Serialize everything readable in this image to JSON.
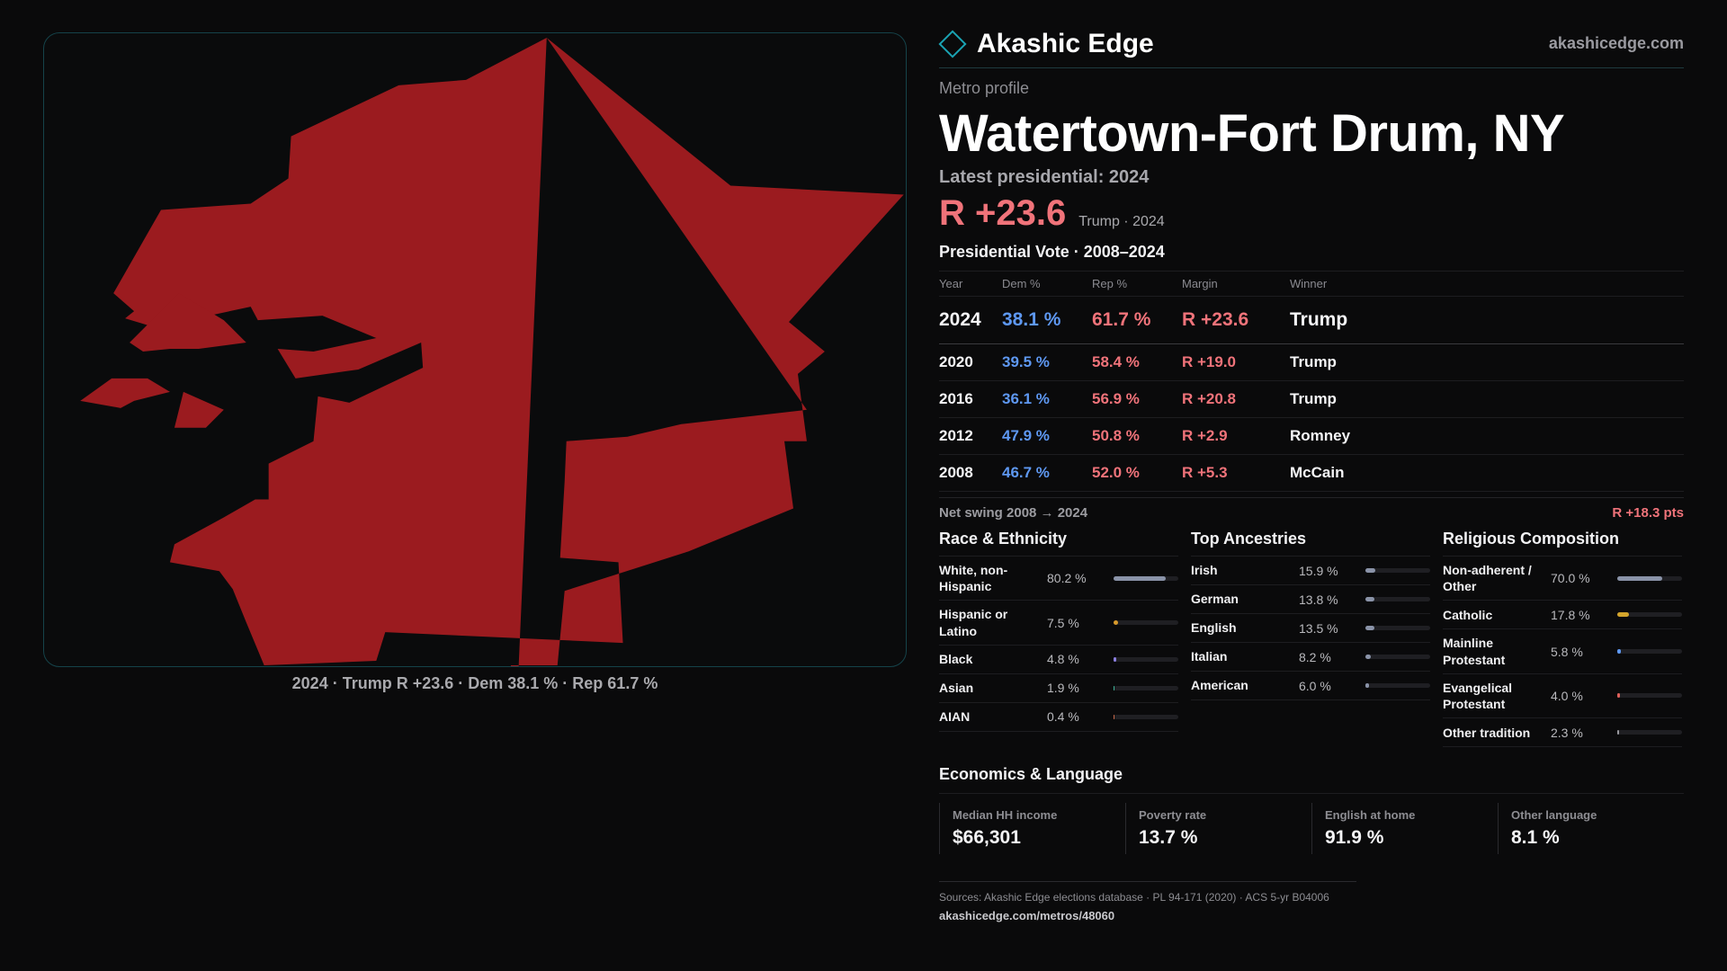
{
  "brand": {
    "name": "Akashic Edge",
    "url": "akashicedge.com"
  },
  "map": {
    "caption": "2024 · Trump R +23.6 · Dem 38.1 % · Rep 61.7 %",
    "fill_color": "#9b1b1f"
  },
  "profile": {
    "eyebrow": "Metro profile",
    "title": "Watertown-Fort Drum, NY",
    "latest_label": "Latest presidential: 2024",
    "big_margin": "R +23.6",
    "big_sub": "Trump · 2024"
  },
  "vote_table": {
    "title": "Presidential Vote · 2008–2024",
    "headers": [
      "Year",
      "Dem %",
      "Rep %",
      "Margin",
      "Winner"
    ],
    "rows": [
      {
        "year": "2024",
        "dem": "38.1 %",
        "rep": "61.7 %",
        "margin": "R +23.6",
        "winner": "Trump"
      },
      {
        "year": "2020",
        "dem": "39.5 %",
        "rep": "58.4 %",
        "margin": "R +19.0",
        "winner": "Trump"
      },
      {
        "year": "2016",
        "dem": "36.1 %",
        "rep": "56.9 %",
        "margin": "R +20.8",
        "winner": "Trump"
      },
      {
        "year": "2012",
        "dem": "47.9 %",
        "rep": "50.8 %",
        "margin": "R +2.9",
        "winner": "Romney"
      },
      {
        "year": "2008",
        "dem": "46.7 %",
        "rep": "52.0 %",
        "margin": "R +5.3",
        "winner": "McCain"
      }
    ],
    "swing_label": "Net swing 2008 → 2024",
    "swing_value": "R +18.3 pts"
  },
  "race": {
    "title": "Race & Ethnicity",
    "items": [
      {
        "label": "White, non-Hispanic",
        "value": "80.2 %",
        "share": 0.802,
        "color": "#8a93a8"
      },
      {
        "label": "Hispanic or Latino",
        "value": "7.5 %",
        "share": 0.075,
        "color": "#d89a2b"
      },
      {
        "label": "Black",
        "value": "4.8 %",
        "share": 0.048,
        "color": "#8b7fe0"
      },
      {
        "label": "Asian",
        "value": "1.9 %",
        "share": 0.019,
        "color": "#3fb59a"
      },
      {
        "label": "AIAN",
        "value": "0.4 %",
        "share": 0.004,
        "color": "#c96a4a"
      }
    ]
  },
  "ancestry": {
    "title": "Top Ancestries",
    "items": [
      {
        "label": "Irish",
        "value": "15.9 %",
        "share": 0.159,
        "color": "#8a93a8"
      },
      {
        "label": "German",
        "value": "13.8 %",
        "share": 0.138,
        "color": "#8a93a8"
      },
      {
        "label": "English",
        "value": "13.5 %",
        "share": 0.135,
        "color": "#8a93a8"
      },
      {
        "label": "Italian",
        "value": "8.2 %",
        "share": 0.082,
        "color": "#8a93a8"
      },
      {
        "label": "American",
        "value": "6.0 %",
        "share": 0.06,
        "color": "#8a93a8"
      }
    ]
  },
  "religion": {
    "title": "Religious Composition",
    "items": [
      {
        "label": "Non-adherent / Other",
        "value": "70.0 %",
        "share": 0.7,
        "color": "#8a93a8"
      },
      {
        "label": "Catholic",
        "value": "17.8 %",
        "share": 0.178,
        "color": "#d4a52c"
      },
      {
        "label": "Mainline Protestant",
        "value": "5.8 %",
        "share": 0.058,
        "color": "#5e98f2"
      },
      {
        "label": "Evangelical Protestant",
        "value": "4.0 %",
        "share": 0.04,
        "color": "#e0605a"
      },
      {
        "label": "Other tradition",
        "value": "2.3 %",
        "share": 0.023,
        "color": "#9a9aa0"
      }
    ]
  },
  "economics": {
    "title": "Economics & Language",
    "items": [
      {
        "label": "Median HH income",
        "value": "$66,301"
      },
      {
        "label": "Poverty rate",
        "value": "13.7 %"
      },
      {
        "label": "English at home",
        "value": "91.9 %"
      },
      {
        "label": "Other language",
        "value": "8.1 %"
      }
    ]
  },
  "footer": {
    "sources": "Sources: Akashic Edge elections database · PL 94-171 (2020) · ACS 5-yr B04006",
    "url": "akashicedge.com/metros/48060"
  }
}
